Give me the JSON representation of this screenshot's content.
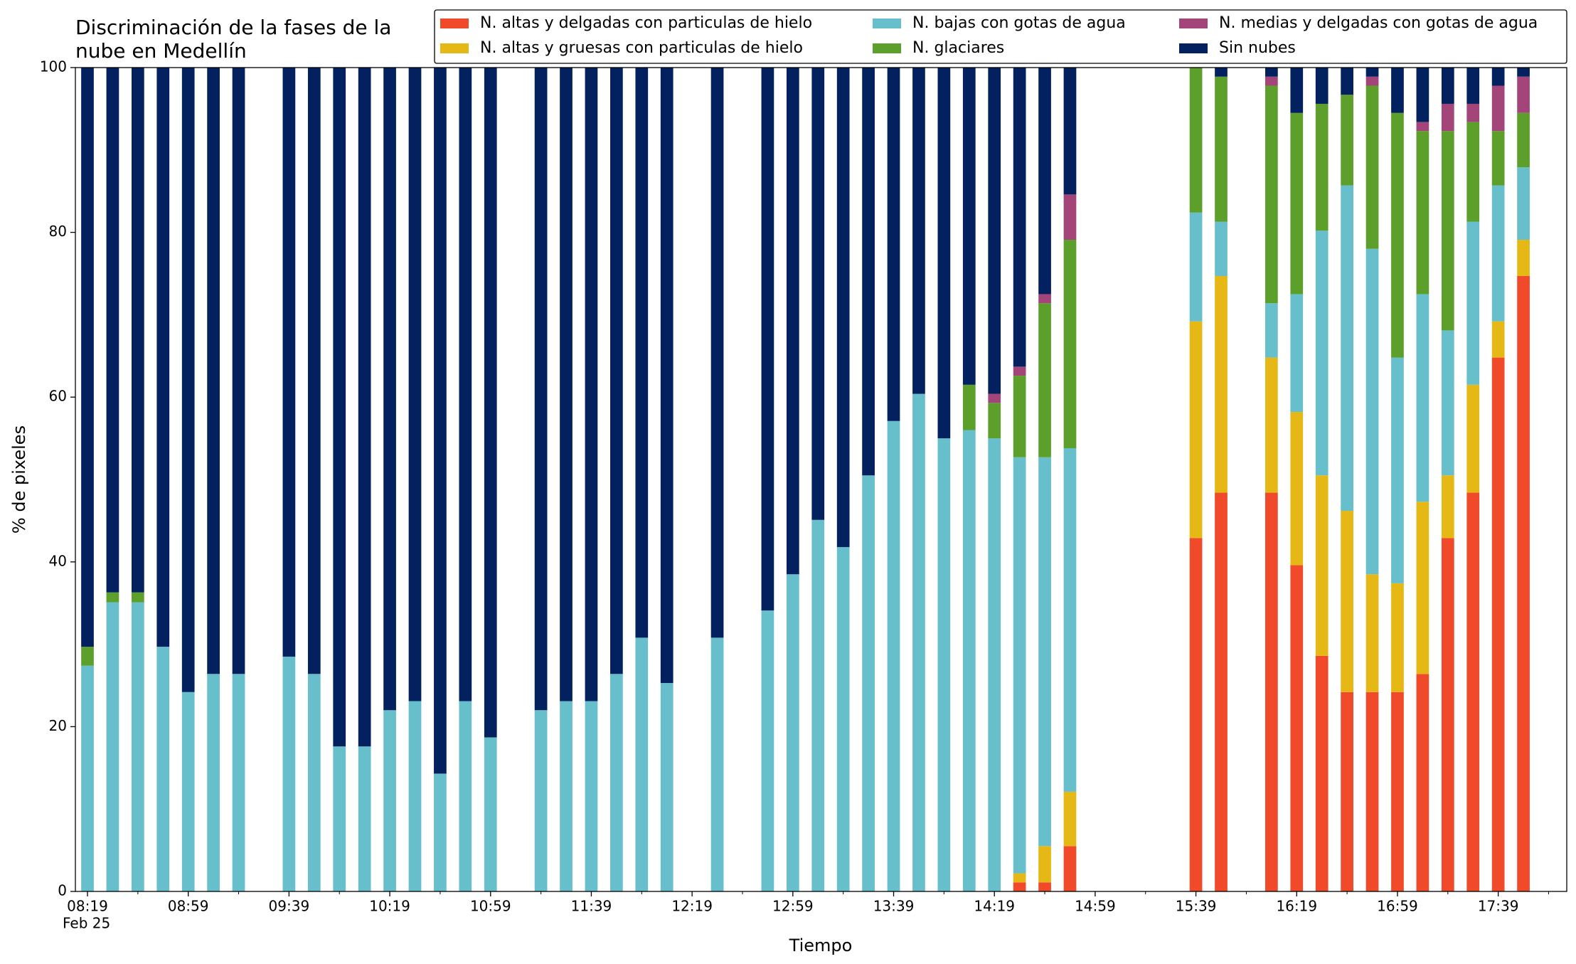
{
  "chart_data": {
    "type": "stacked_bar",
    "title": [
      "Discriminación de la fases de la",
      "nube en Medellín"
    ],
    "xlabel": "Tiempo",
    "ylabel": "% de pixeles",
    "xtick_sublabel": "Feb 25",
    "categories": [
      "08:19",
      null,
      null,
      null,
      "08:59",
      null,
      null,
      null,
      "09:39",
      null,
      null,
      null,
      "10:19",
      null,
      null,
      null,
      "10:59",
      null,
      null,
      null,
      "11:39",
      null,
      null,
      null,
      "12:19",
      null,
      null,
      null,
      "12:59",
      null,
      null,
      null,
      "13:39",
      null,
      null,
      null,
      "14:19",
      null,
      null,
      null,
      "14:59",
      null,
      null,
      null,
      "15:39",
      null,
      null,
      null,
      "16:19",
      null,
      null,
      null,
      "16:59",
      null,
      null,
      null,
      "17:39",
      null
    ],
    "series": [
      {
        "name": "N. altas y delgadas con particulas de hielo",
        "color": "#f04a2a",
        "values": [
          0,
          0,
          0,
          0,
          0,
          0,
          0,
          null,
          0,
          0,
          0,
          0,
          0,
          0,
          0,
          0,
          0,
          null,
          0,
          0,
          0,
          0,
          0,
          0,
          null,
          0,
          null,
          0,
          0,
          0,
          0,
          0,
          0,
          0,
          0,
          0,
          0,
          1.1,
          1.1,
          5.5,
          null,
          null,
          null,
          null,
          42.9,
          48.4,
          null,
          48.4,
          39.6,
          28.6,
          24.2,
          24.2,
          24.2,
          26.4,
          42.9,
          48.4,
          64.8,
          74.7
        ]
      },
      {
        "name": "N. altas y gruesas con particulas de hielo",
        "color": "#e6b816",
        "values": [
          0,
          0,
          0,
          0,
          0,
          0,
          0,
          null,
          0,
          0,
          0,
          0,
          0,
          0,
          0,
          0,
          0,
          null,
          0,
          0,
          0,
          0,
          0,
          0,
          null,
          0,
          null,
          0,
          0,
          0,
          0,
          0,
          0,
          0,
          0,
          0,
          0,
          1.1,
          4.4,
          6.6,
          null,
          null,
          null,
          null,
          26.3,
          26.3,
          null,
          16.4,
          18.6,
          21.9,
          22.0,
          14.3,
          13.2,
          20.9,
          7.6,
          13.1,
          4.4,
          4.4
        ]
      },
      {
        "name": "N. bajas con gotas de agua",
        "color": "#67bfcb",
        "values": [
          27.4,
          35.1,
          35.1,
          29.7,
          24.2,
          26.4,
          26.4,
          null,
          28.5,
          26.4,
          17.6,
          17.6,
          22.0,
          23.1,
          14.3,
          23.1,
          18.7,
          null,
          22.0,
          23.1,
          23.1,
          26.4,
          30.8,
          25.3,
          null,
          30.8,
          null,
          34.1,
          38.5,
          45.1,
          41.8,
          50.5,
          57.1,
          60.4,
          55.0,
          56.0,
          55.0,
          50.5,
          47.2,
          41.7,
          null,
          null,
          null,
          null,
          13.2,
          6.6,
          null,
          6.6,
          14.3,
          29.7,
          39.5,
          39.5,
          27.4,
          25.2,
          17.6,
          19.8,
          16.5,
          8.8
        ]
      },
      {
        "name": "N. glaciares",
        "color": "#5c9f2b",
        "values": [
          2.3,
          1.2,
          1.2,
          0,
          0,
          0,
          0,
          null,
          0,
          0,
          0,
          0,
          0,
          0,
          0,
          0,
          0,
          null,
          0,
          0,
          0,
          0,
          0,
          0,
          null,
          0,
          null,
          0,
          0,
          0,
          0,
          0,
          0,
          0,
          0,
          5.5,
          4.3,
          9.9,
          18.7,
          25.3,
          null,
          null,
          null,
          null,
          17.6,
          17.6,
          null,
          26.4,
          22.0,
          15.4,
          11.0,
          19.8,
          29.7,
          19.8,
          24.2,
          12.1,
          6.6,
          6.6
        ]
      },
      {
        "name": "N. medias y delgadas con gotas de agua",
        "color": "#a4457a",
        "values": [
          0,
          0,
          0,
          0,
          0,
          0,
          0,
          null,
          0,
          0,
          0,
          0,
          0,
          0,
          0,
          0,
          0,
          null,
          0,
          0,
          0,
          0,
          0,
          0,
          null,
          0,
          null,
          0,
          0,
          0,
          0,
          0,
          0,
          0,
          0,
          0,
          1.1,
          1.1,
          1.1,
          5.5,
          null,
          null,
          null,
          null,
          0,
          0,
          null,
          1.1,
          0,
          0,
          0,
          1.1,
          0,
          1.1,
          3.3,
          2.2,
          5.5,
          4.4
        ]
      },
      {
        "name": "Sin nubes",
        "color": "#03205f",
        "values": [
          70.3,
          63.7,
          63.7,
          70.3,
          75.8,
          73.6,
          73.6,
          null,
          71.5,
          73.6,
          82.4,
          82.4,
          78.0,
          76.9,
          85.7,
          76.9,
          81.3,
          null,
          78.0,
          76.9,
          76.9,
          73.6,
          69.2,
          74.7,
          null,
          69.2,
          null,
          65.9,
          61.5,
          54.9,
          58.2,
          49.5,
          42.9,
          39.6,
          45.0,
          38.5,
          39.6,
          36.3,
          27.5,
          15.4,
          null,
          null,
          null,
          null,
          0,
          1.1,
          null,
          1.1,
          5.5,
          4.4,
          3.3,
          1.1,
          5.5,
          6.6,
          4.4,
          4.4,
          2.2,
          1.1
        ]
      }
    ],
    "ylim": [
      0,
      100
    ],
    "yticks": [
      0,
      20,
      40,
      60,
      80,
      100
    ],
    "legend_loc": "upper right"
  }
}
